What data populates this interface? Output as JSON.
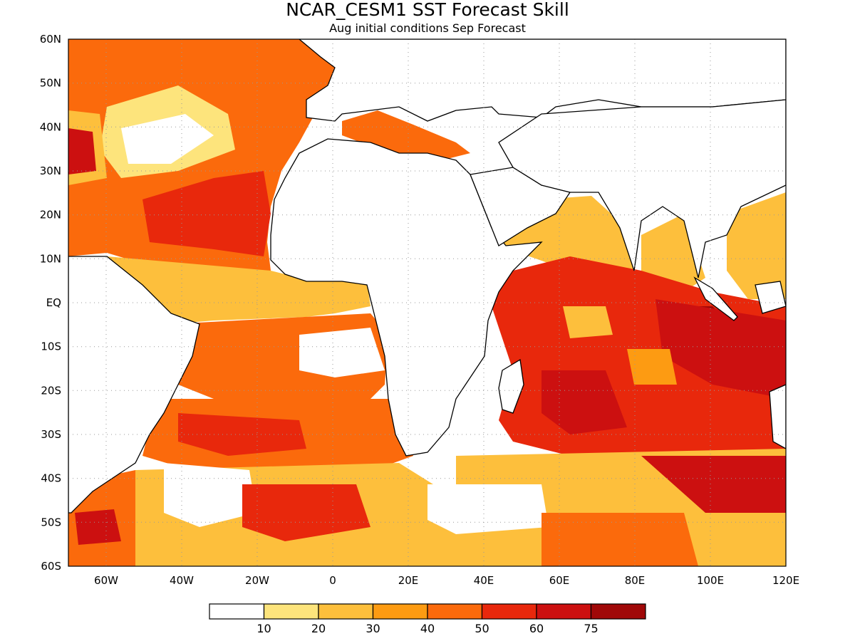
{
  "header": {
    "title": "NCAR_CESM1  SST Forecast Skill",
    "subtitle": "Aug initial conditions  Sep Forecast"
  },
  "map": {
    "lon_range": [
      -70,
      120
    ],
    "lat_range": [
      -60,
      60
    ],
    "lat_ticks": [
      "60N",
      "50N",
      "40N",
      "30N",
      "20N",
      "10N",
      "EQ",
      "10S",
      "20S",
      "30S",
      "40S",
      "50S",
      "60S"
    ],
    "lon_ticks": [
      "60W",
      "40W",
      "20W",
      "0",
      "20E",
      "40E",
      "60E",
      "80E",
      "100E",
      "120E"
    ],
    "grid": "dotted"
  },
  "colorbar": {
    "colors": [
      "#ffffff",
      "#fde47c",
      "#fdbf3c",
      "#fd9b12",
      "#fb6a0c",
      "#e8280c",
      "#cc1010",
      "#a00808"
    ],
    "labels": [
      "10",
      "20",
      "30",
      "40",
      "50",
      "60",
      "75"
    ]
  }
}
